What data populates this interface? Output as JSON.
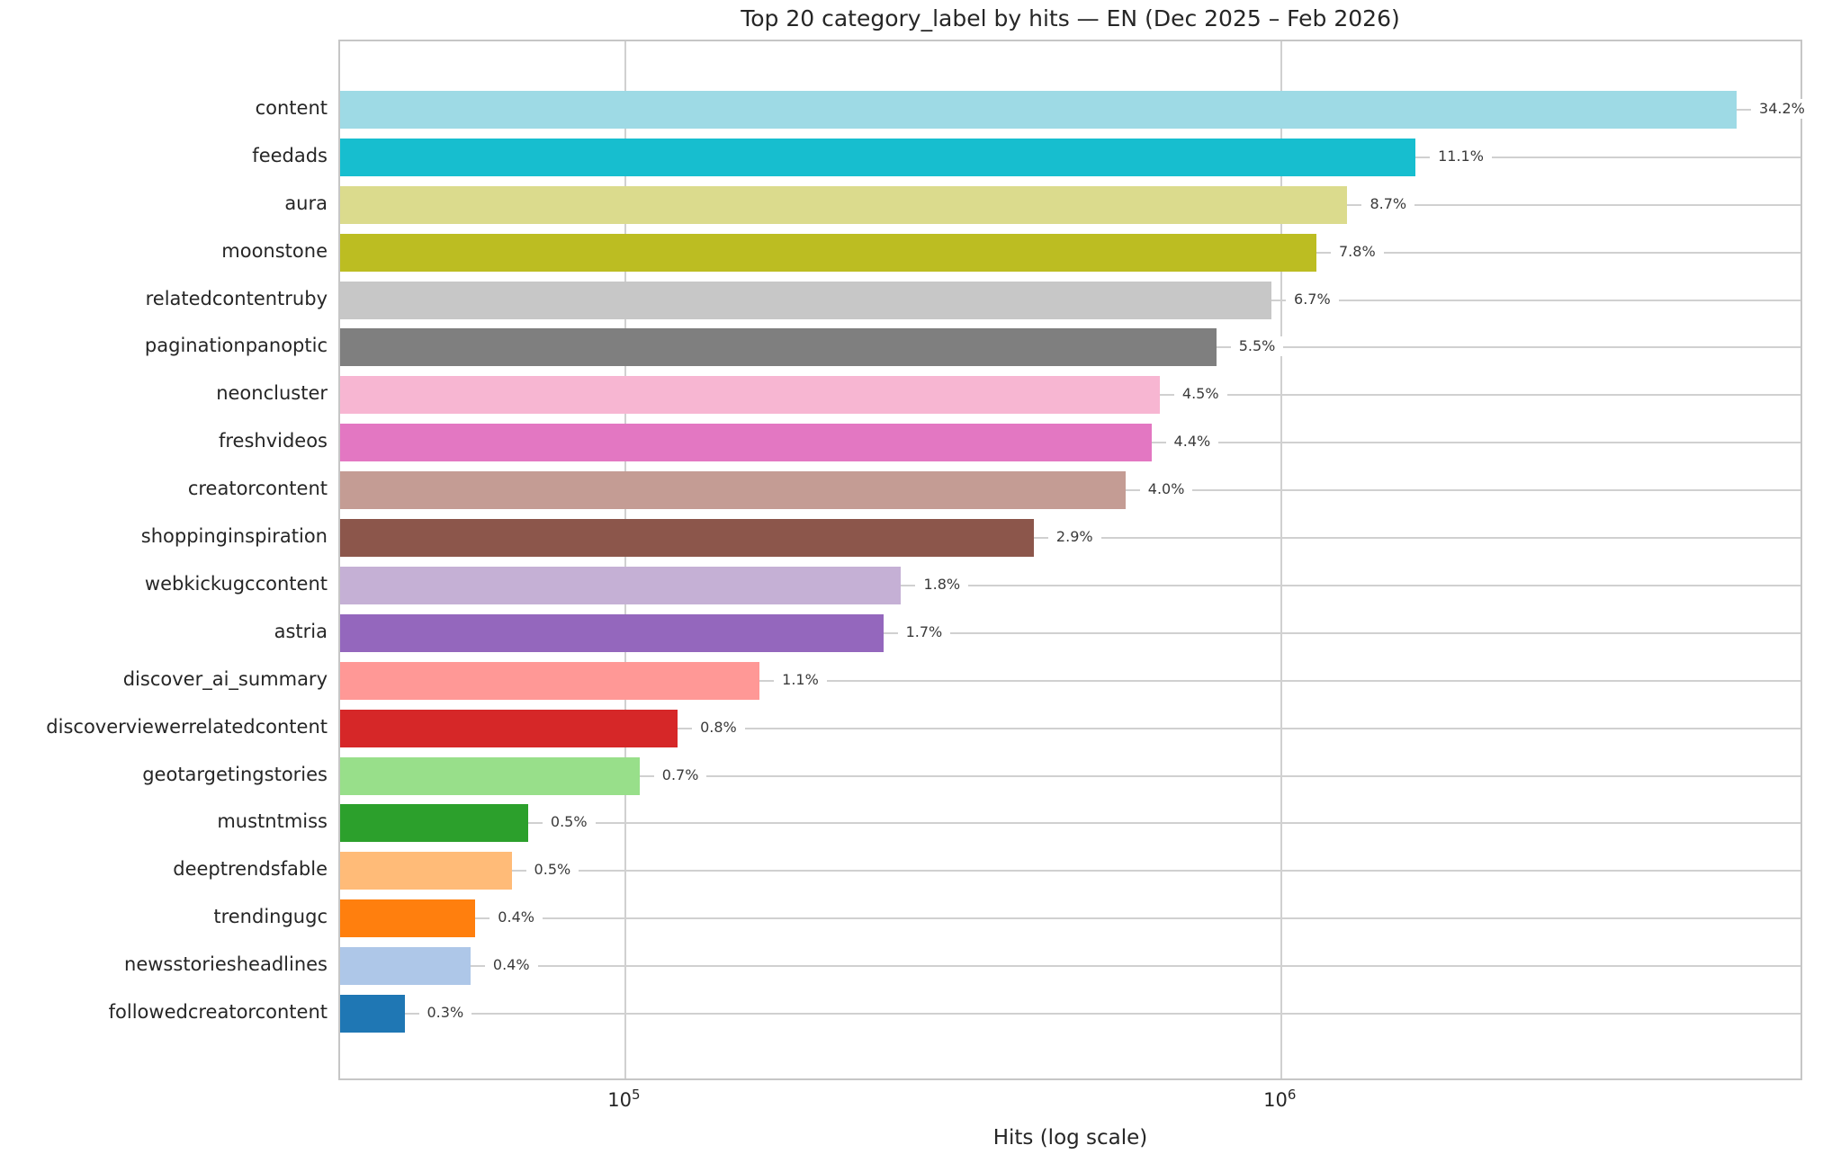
{
  "chart_data": {
    "type": "bar",
    "orientation": "horizontal",
    "x_scale": "log",
    "grid": true,
    "legend": "none",
    "title": "Top 20 category_label by hits — EN (Dec 2025 – Feb 2026)",
    "xlabel": "Hits (log scale)",
    "ylabel": "",
    "xlim": [
      36700,
      6260000
    ],
    "x_ticks": [
      {
        "value": 100000,
        "base": "10",
        "exp": "5"
      },
      {
        "value": 1000000,
        "base": "10",
        "exp": "6"
      }
    ],
    "categories": [
      "content",
      "feedads",
      "aura",
      "moonstone",
      "relatedcontentruby",
      "paginationpanoptic",
      "neoncluster",
      "freshvideos",
      "creatorcontent",
      "shoppinginspiration",
      "webkickugccontent",
      "astria",
      "discover_ai_summary",
      "discoverviewerrelatedcontent",
      "geotargetingstories",
      "mustntmiss",
      "deeptrendsfable",
      "trendingugc",
      "newsstoriesheadlines",
      "followedcreatorcontent"
    ],
    "values": [
      4940000,
      1600000,
      1260000,
      1130000,
      965000,
      795000,
      652000,
      633000,
      578000,
      419000,
      263000,
      247000,
      160000,
      120000,
      105000,
      71000,
      67000,
      59000,
      58000,
      46000
    ],
    "pct_labels": [
      "34.2%",
      "11.1%",
      "8.7%",
      "7.8%",
      "6.7%",
      "5.5%",
      "4.5%",
      "4.4%",
      "4.0%",
      "2.9%",
      "1.8%",
      "1.7%",
      "1.1%",
      "0.8%",
      "0.7%",
      "0.5%",
      "0.5%",
      "0.4%",
      "0.4%",
      "0.3%"
    ],
    "colors": [
      "#9edae5",
      "#17becf",
      "#dbdb8d",
      "#bcbd22",
      "#c7c7c7",
      "#7f7f7f",
      "#f7b6d2",
      "#e377c2",
      "#c49c94",
      "#8c564b",
      "#c5b0d5",
      "#9467bd",
      "#ff9896",
      "#d62728",
      "#98df8a",
      "#2ca02c",
      "#ffbb78",
      "#ff7f0e",
      "#aec7e8",
      "#1f77b4"
    ],
    "grid_color": "#d0d0d0",
    "axes_edge_color": "#c6c6c6",
    "text_color": "#262626"
  }
}
